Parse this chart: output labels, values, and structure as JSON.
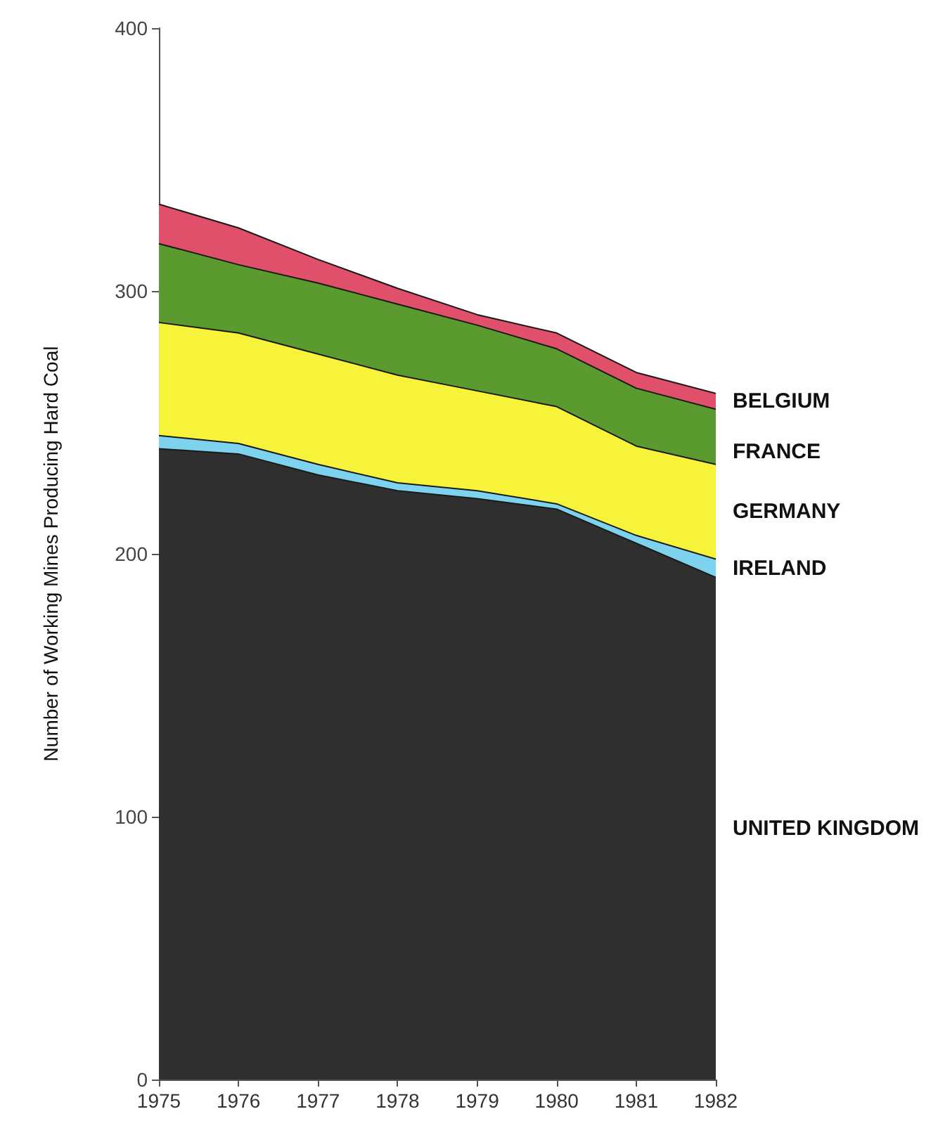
{
  "chart_data": {
    "type": "area",
    "stacked": true,
    "ylabel": "Number of Working Mines Producing Hard Coal",
    "categories": [
      "1975",
      "1976",
      "1977",
      "1978",
      "1979",
      "1980",
      "1981",
      "1982"
    ],
    "series": [
      {
        "name": "UNITED KINGDOM",
        "color": "#2f2f2f",
        "values": [
          240,
          238,
          230,
          224,
          221,
          217,
          204,
          191
        ]
      },
      {
        "name": "IRELAND",
        "color": "#7dd3ee",
        "values": [
          5,
          4,
          4,
          3,
          3,
          2,
          3,
          7
        ]
      },
      {
        "name": "GERMANY",
        "color": "#f7f23a",
        "values": [
          43,
          42,
          42,
          41,
          38,
          37,
          34,
          36
        ]
      },
      {
        "name": "FRANCE",
        "color": "#5a9a2e",
        "values": [
          30,
          26,
          27,
          27,
          25,
          22,
          22,
          21
        ]
      },
      {
        "name": "BELGIUM",
        "color": "#e0506a",
        "values": [
          15,
          14,
          9,
          6,
          4,
          6,
          6,
          6
        ]
      }
    ],
    "ylim": [
      0,
      400
    ],
    "yticks": [
      0,
      100,
      200,
      300,
      400
    ],
    "grid": false,
    "legend": false
  }
}
